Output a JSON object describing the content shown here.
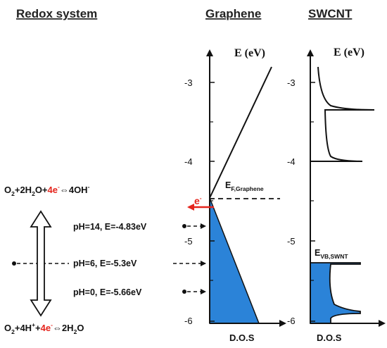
{
  "headers": {
    "redox": "Redox system",
    "graphene": "Graphene",
    "swcnt": "SWCNT"
  },
  "axis_label": "E (eV)",
  "ticks": {
    "graphene": [
      "-3",
      "-4",
      "-5",
      "-6"
    ],
    "swcnt": [
      "-3",
      "-4",
      "-5",
      "-6"
    ]
  },
  "fermi_label": {
    "main": "E",
    "sub": "F,Graphene"
  },
  "electron_label": {
    "main": "e",
    "sup": "-"
  },
  "vb_label": {
    "main": "E",
    "sub": "VB,SWNT"
  },
  "ph_levels": [
    {
      "text": "pH=14, E=-4.83eV",
      "energy": -4.83
    },
    {
      "text": "pH=6, E=-5.3eV",
      "energy": -5.3
    },
    {
      "text": "pH=0, E=-5.66eV",
      "energy": -5.66
    }
  ],
  "eq_top": {
    "p1": "O",
    "s1": "2",
    "p2": "+2H",
    "s2": "2",
    "p3": "O+",
    "red": "4e",
    "redsup": "-",
    "p4": "⇔4OH",
    "sup4": "-"
  },
  "eq_bottom": {
    "p1": "O",
    "s1": "2",
    "p2": "+4H",
    "sup2": "+",
    "p3": "+",
    "red": "4e",
    "redsup": "-",
    "p4": "⇔2H",
    "s4": "2",
    "p5": "O"
  },
  "dos_label": "D.O.S",
  "colors": {
    "fill": "#2b83d8",
    "red": "#e5241c",
    "line": "#111111"
  },
  "fermi_energy": -4.47
}
